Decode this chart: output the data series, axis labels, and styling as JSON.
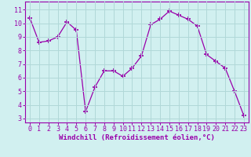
{
  "x": [
    0,
    1,
    2,
    3,
    4,
    5,
    6,
    7,
    8,
    9,
    10,
    11,
    12,
    13,
    14,
    15,
    16,
    17,
    18,
    19,
    20,
    21,
    22,
    23
  ],
  "y": [
    10.4,
    8.6,
    8.7,
    9.0,
    10.1,
    9.5,
    3.5,
    5.3,
    6.5,
    6.5,
    6.1,
    6.7,
    7.6,
    9.9,
    10.3,
    10.9,
    10.6,
    10.3,
    9.8,
    7.7,
    7.2,
    6.7,
    5.0,
    3.2
  ],
  "line_color": "#9900aa",
  "marker": "+",
  "marker_size": 4.0,
  "marker_lw": 1.2,
  "bg_color": "#d1f0f0",
  "grid_color": "#b0d8d8",
  "ylabel_ticks": [
    3,
    4,
    5,
    6,
    7,
    8,
    9,
    10,
    11
  ],
  "xlabel": "Windchill (Refroidissement éolien,°C)",
  "xlabel_fontsize": 6.5,
  "tick_fontsize": 6.0,
  "ylim": [
    2.7,
    11.6
  ],
  "xlim": [
    -0.5,
    23.5
  ]
}
